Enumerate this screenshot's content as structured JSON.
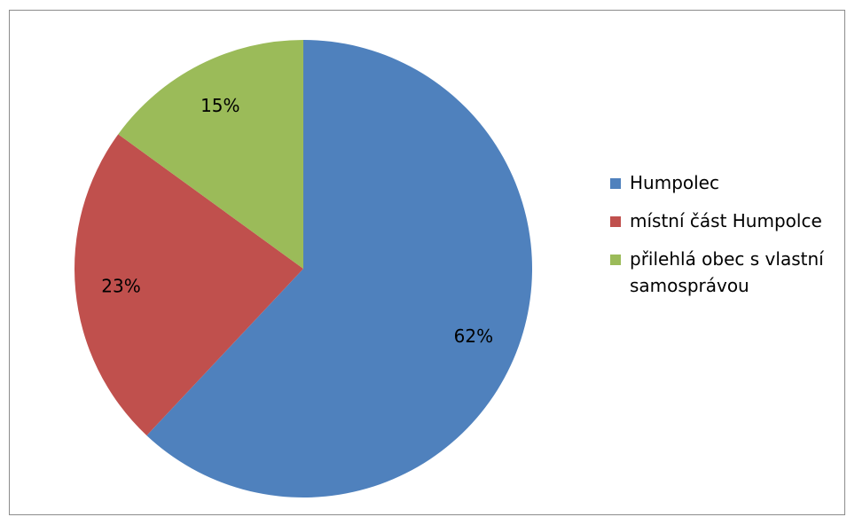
{
  "chart_data": {
    "type": "pie",
    "title": "",
    "slices": [
      {
        "label": "Humpolec",
        "value": 62,
        "display": "62%",
        "color": "#4f81bd"
      },
      {
        "label": "místní část Humpolce",
        "value": 23,
        "display": "23%",
        "color": "#c0504d"
      },
      {
        "label": "přilehlá obec s vlastní samosprávou",
        "value": 15,
        "display": "15%",
        "color": "#9bbb59"
      }
    ],
    "start": "top",
    "direction": "clockwise",
    "legend_position": "right"
  }
}
